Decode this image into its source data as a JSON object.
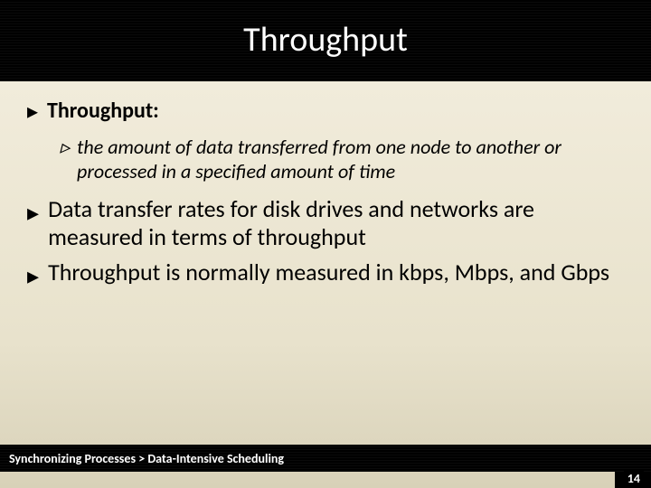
{
  "title": "Throughput",
  "bullets": {
    "heading": "Throughput:",
    "sub": "the amount of data transferred from one node to another or processed in a specified amount of time",
    "p2": "Data transfer rates for disk drives and networks are measured in terms of throughput",
    "p3": "Throughput is normally measured in kbps, Mbps, and Gbps"
  },
  "footer": "Synchronizing Processes > Data-Intensive Scheduling",
  "page_number": "14",
  "colors": {
    "band_bg": "#000000",
    "band_text": "#ffffff",
    "body_text": "#000000",
    "slide_bg_top": "#f4efe0",
    "slide_bg_bottom": "#d8d1b8"
  },
  "fonts": {
    "title_size_pt": 28,
    "body_size_pt": 20,
    "footer_size_pt": 11
  }
}
